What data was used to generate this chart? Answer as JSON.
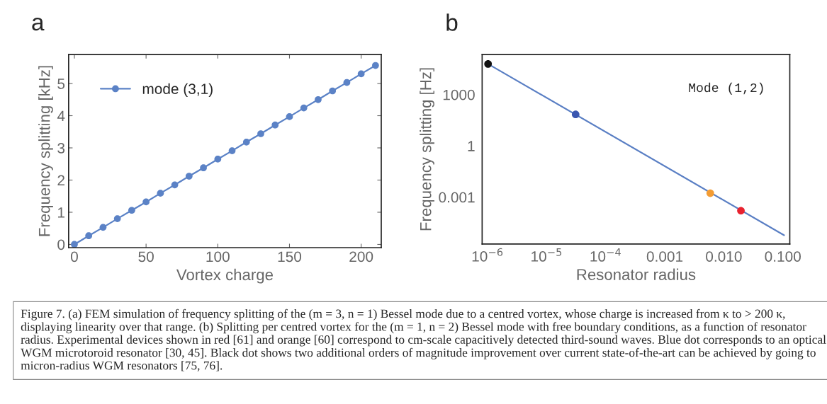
{
  "chart_data": [
    {
      "type": "line",
      "title": "a",
      "xlabel": "Vortex charge",
      "ylabel": "Frequency splitting [kHz]",
      "x": [
        0,
        10,
        20,
        30,
        40,
        50,
        60,
        70,
        80,
        90,
        100,
        110,
        120,
        130,
        140,
        150,
        160,
        170,
        180,
        190,
        200,
        210
      ],
      "series": [
        {
          "name": "mode (3,1)",
          "color": "#5b82c6",
          "values": [
            0,
            0.27,
            0.53,
            0.8,
            1.06,
            1.32,
            1.59,
            1.85,
            2.12,
            2.38,
            2.65,
            2.91,
            3.18,
            3.44,
            3.71,
            3.97,
            4.24,
            4.5,
            4.77,
            5.03,
            5.3,
            5.56
          ]
        }
      ],
      "xlim": [
        -4,
        214
      ],
      "ylim": [
        -0.1,
        5.9
      ],
      "xticks": [
        0,
        50,
        100,
        150,
        200
      ],
      "yticks": [
        0,
        1,
        2,
        3,
        4,
        5
      ],
      "marker": "circle",
      "legend": "top left",
      "annotations": [
        "Figure 7. (a) FEM simulation of frequency splitting of the (m = 3, n = 1) Bessel mode due to a centred vortex, whose charge is increased from κ to > 200 κ, displaying linearity over that range. (b) Splitting per centred vortex for the (m = 1, n = 2) Bessel mode with free boundary conditions, as a function of resonator radius. Experimental devices shown in red [61] and orange [60] correspond to cm-scale capacitively detected third-sound waves. Blue dot corresponds to an optical WGM microtoroid resonator [30, 45]. Black dot shows two additional orders of magnitude improvement over current state-of-the-art can be achieved by going to micron-radius WGM resonators [75, 76]."
      ]
    },
    {
      "type": "line",
      "title": "b",
      "xlabel": "Resonator radius",
      "ylabel": "Frequency splitting [Hz]",
      "log": "xy",
      "series": [
        {
          "type": "line",
          "color": "#5a7fc4",
          "x": [
            1.02e-06,
            0.105
          ],
          "values": [
            62000,
            5.9e-06
          ]
        },
        {
          "type": "scatter",
          "colors": [
            "#111111",
            "#3a56b0",
            "#f39c34",
            "#e8222f"
          ],
          "x": [
            1.02e-06,
            3.1e-05,
            0.0059,
            0.0195
          ],
          "values": [
            62000,
            69,
            0.0017,
            0.00016
          ]
        }
      ],
      "xlim": [
        8.1e-07,
        0.131
      ],
      "ylim": [
        1.8e-06,
        220000
      ],
      "xticks": [
        {
          "value": 1e-06,
          "label": "10$^{−6}$"
        },
        {
          "value": 1e-05,
          "label": "10$^{−5}$"
        },
        {
          "value": 0.0001,
          "label": "10$^{−4}$"
        },
        {
          "value": 0.001,
          "label": "0.001"
        },
        {
          "value": 0.01,
          "label": "0.010"
        },
        {
          "value": 0.1,
          "label": "0.100"
        }
      ],
      "yticks": [
        1000,
        1,
        0.001
      ],
      "annotations": [
        "Mode (1,2)"
      ]
    }
  ]
}
